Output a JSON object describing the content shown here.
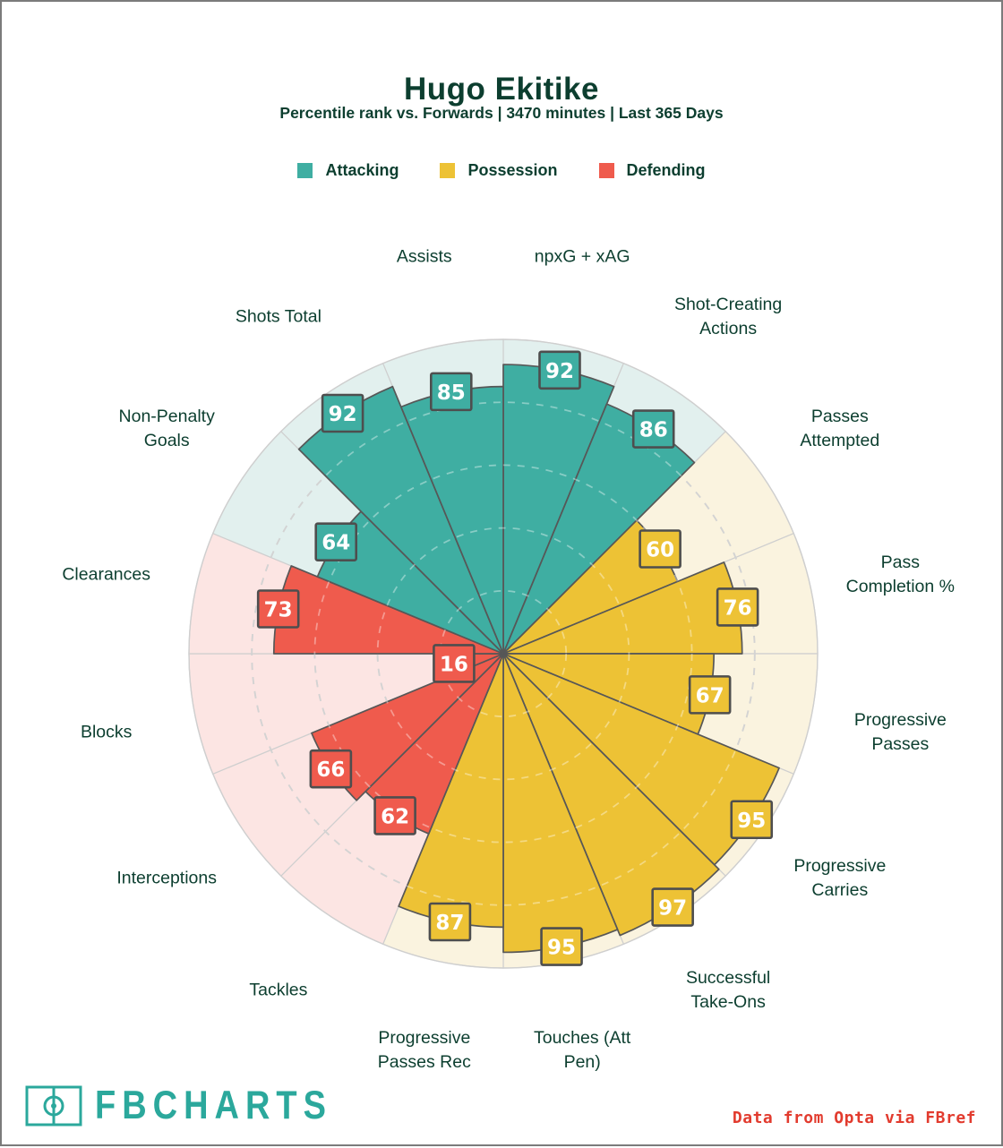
{
  "header": {
    "title": "Hugo Ekitike",
    "subtitle": "Percentile rank vs. Forwards | 3470 minutes | Last 365 Days"
  },
  "legend": [
    {
      "label": "Attacking",
      "color": "#3FAEA2"
    },
    {
      "label": "Possession",
      "color": "#EDC235"
    },
    {
      "label": "Defending",
      "color": "#EF5B4D"
    }
  ],
  "chart_data": {
    "type": "pizza-polar-bar",
    "title": "Hugo Ekitike",
    "subtitle": "Percentile rank vs. Forwards | 3470 minutes | Last 365 Days",
    "scale": [
      0,
      100
    ],
    "gridlines": [
      20,
      40,
      60,
      80
    ],
    "orientation": "clockwise-from-top",
    "legend_position": "top",
    "slices": [
      {
        "label": "npxG + xAG",
        "value": 92,
        "group": "Attacking"
      },
      {
        "label": "Shot-Creating Actions",
        "value": 86,
        "group": "Attacking"
      },
      {
        "label": "Passes Attempted",
        "value": 60,
        "group": "Possession"
      },
      {
        "label": "Pass Completion %",
        "value": 76,
        "group": "Possession"
      },
      {
        "label": "Progressive Passes",
        "value": 67,
        "group": "Possession"
      },
      {
        "label": "Progressive Carries",
        "value": 95,
        "group": "Possession"
      },
      {
        "label": "Successful Take-Ons",
        "value": 97,
        "group": "Possession"
      },
      {
        "label": "Touches (Att Pen)",
        "value": 95,
        "group": "Possession"
      },
      {
        "label": "Progressive Passes Rec",
        "value": 87,
        "group": "Possession"
      },
      {
        "label": "Tackles",
        "value": 62,
        "group": "Defending"
      },
      {
        "label": "Interceptions",
        "value": 66,
        "group": "Defending"
      },
      {
        "label": "Blocks",
        "value": 16,
        "group": "Defending"
      },
      {
        "label": "Clearances",
        "value": 73,
        "group": "Defending"
      },
      {
        "label": "Non-Penalty Goals",
        "value": 64,
        "group": "Attacking"
      },
      {
        "label": "Shots Total",
        "value": 92,
        "group": "Attacking"
      },
      {
        "label": "Assists",
        "value": 85,
        "group": "Attacking"
      }
    ],
    "groups": {
      "Attacking": {
        "fill": "#3FAEA2",
        "bg": "#E2F0EE"
      },
      "Possession": {
        "fill": "#EDC235",
        "bg": "#FAF3DF"
      },
      "Defending": {
        "fill": "#EF5B4D",
        "bg": "#FCE5E3"
      }
    }
  },
  "footer": {
    "brand": "FBCHARTS",
    "brand_color": "#2ba89c",
    "credit": "Data from Opta via FBref",
    "credit_color": "#e23b2e"
  }
}
